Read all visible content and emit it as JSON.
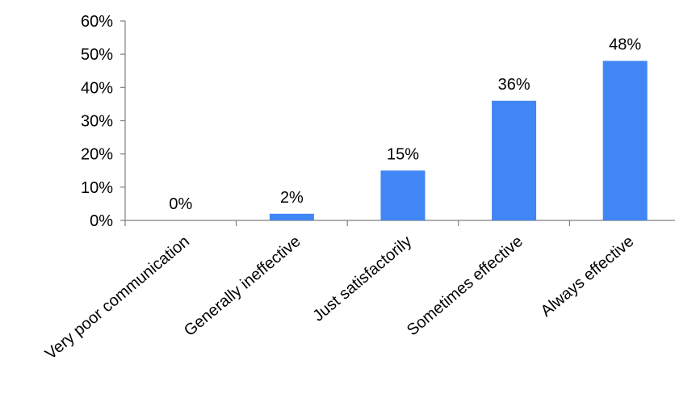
{
  "chart_data": {
    "type": "bar",
    "categories": [
      "Very poor communication",
      "Generally ineffective",
      "Just satisfactorily",
      "Sometimes effective",
      "Always effective"
    ],
    "values": [
      0,
      2,
      15,
      36,
      48
    ],
    "data_labels": [
      "0%",
      "2%",
      "15%",
      "36%",
      "48%"
    ],
    "y_ticks": [
      "0%",
      "10%",
      "20%",
      "30%",
      "40%",
      "50%",
      "60%"
    ],
    "ylim": [
      0,
      60
    ],
    "grid": false,
    "legend": "none",
    "bar_color": "#4285f4"
  }
}
